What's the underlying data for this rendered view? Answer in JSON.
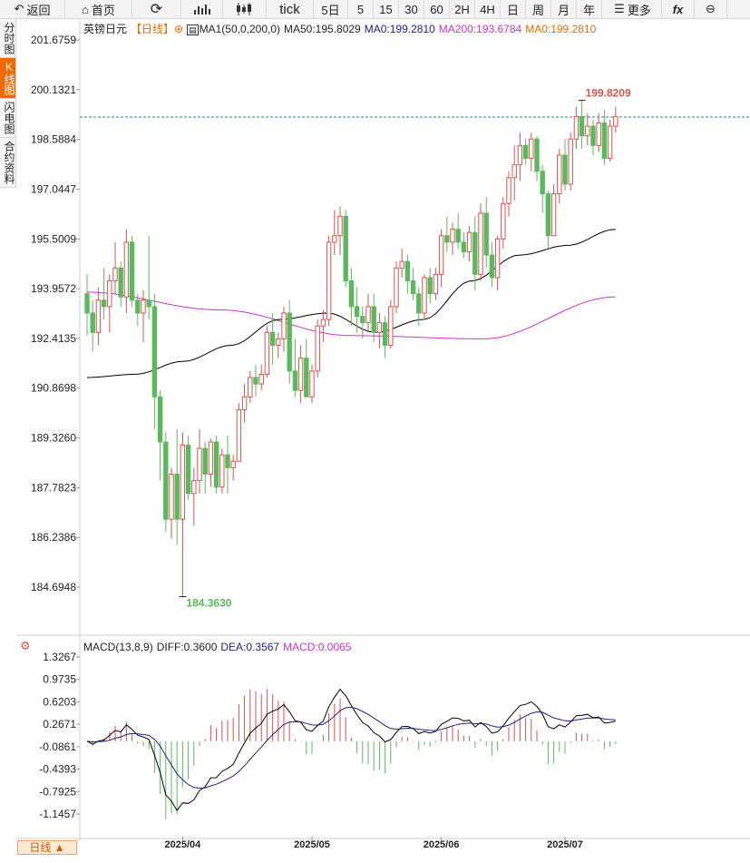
{
  "toolbar": {
    "back_label": "返回",
    "home_label": "首页",
    "tick_label": "tick",
    "periods": [
      "5日",
      "5",
      "15",
      "30",
      "60",
      "2H",
      "4H",
      "日",
      "周",
      "月",
      "年"
    ],
    "more_label": "更多",
    "fx_label": "fx"
  },
  "sidebar": [
    {
      "label": "分时图",
      "active": false
    },
    {
      "label": "K线图",
      "active": true
    },
    {
      "label": "闪电图",
      "active": false
    },
    {
      "label": "合约资料",
      "active": false
    }
  ],
  "info": {
    "symbol": "英镑日元",
    "period_tag": "【日线】",
    "ma_set": "MA1(50,0,200,0)",
    "ma50": "MA50:195.8029",
    "ma0a": "MA0:199.2810",
    "ma200": "MA200:193.6784",
    "ma0b": "MA0:199.2810"
  },
  "macd_info": {
    "name": "MACD(13,8,9)",
    "diff": "DIFF:0.3600",
    "dea": "DEA:0.3567",
    "macd": "MACD:0.0065"
  },
  "colors": {
    "up": "#d9534f",
    "down": "#5cb85c",
    "ma50": "#000000",
    "ma200": "#cc33cc",
    "dea": "#1a237e",
    "accent": "#ee6a00"
  },
  "chart_data": {
    "type": "candlestick",
    "price_axis_ticks": [
      "201.6759",
      "200.1321",
      "198.5884",
      "197.0447",
      "195.5009",
      "193.9572",
      "192.4135",
      "190.8698",
      "189.3260",
      "187.7823",
      "186.2386",
      "184.6948"
    ],
    "price_range": [
      183.9,
      202.2
    ],
    "high_label": "199.8209",
    "low_label": "184.3630",
    "current_price": 199.281,
    "x_labels": [
      {
        "label": "2025/04",
        "index": 17
      },
      {
        "label": "2025/05",
        "index": 40
      },
      {
        "label": "2025/06",
        "index": 63
      },
      {
        "label": "2025/07",
        "index": 85
      }
    ],
    "candles": [
      [
        193.8,
        194.4,
        192.5,
        193.2
      ],
      [
        193.2,
        193.6,
        192.0,
        192.6
      ],
      [
        192.6,
        194.0,
        192.2,
        193.6
      ],
      [
        193.6,
        194.6,
        193.0,
        193.4
      ],
      [
        193.4,
        194.4,
        192.6,
        194.2
      ],
      [
        194.2,
        195.4,
        193.8,
        194.6
      ],
      [
        194.6,
        194.8,
        193.4,
        193.7
      ],
      [
        193.7,
        195.8,
        193.2,
        195.4
      ],
      [
        195.4,
        195.6,
        193.4,
        193.6
      ],
      [
        193.6,
        193.8,
        192.8,
        193.2
      ],
      [
        193.2,
        193.9,
        192.3,
        193.6
      ],
      [
        193.6,
        195.6,
        193.0,
        193.4
      ],
      [
        193.4,
        193.8,
        189.6,
        190.6
      ],
      [
        190.6,
        190.8,
        188.0,
        189.2
      ],
      [
        189.2,
        189.5,
        186.4,
        186.8
      ],
      [
        186.8,
        188.4,
        186.2,
        188.2
      ],
      [
        188.2,
        189.6,
        186.0,
        186.8
      ],
      [
        186.8,
        189.5,
        184.4,
        189.1
      ],
      [
        189.1,
        189.4,
        187.4,
        187.6
      ],
      [
        187.6,
        188.4,
        186.6,
        188.0
      ],
      [
        188.0,
        189.6,
        187.6,
        189.0
      ],
      [
        189.0,
        189.2,
        187.6,
        188.2
      ],
      [
        188.2,
        189.3,
        187.8,
        189.2
      ],
      [
        189.2,
        189.4,
        187.6,
        187.8
      ],
      [
        187.8,
        189.0,
        187.6,
        188.8
      ],
      [
        188.8,
        189.4,
        187.6,
        188.4
      ],
      [
        188.4,
        188.8,
        188.0,
        188.6
      ],
      [
        188.6,
        190.4,
        188.6,
        190.2
      ],
      [
        190.2,
        191.0,
        189.8,
        190.6
      ],
      [
        190.6,
        191.4,
        190.4,
        191.2
      ],
      [
        191.2,
        191.6,
        190.6,
        191.0
      ],
      [
        191.0,
        191.6,
        190.8,
        191.3
      ],
      [
        191.3,
        192.8,
        191.2,
        192.6
      ],
      [
        192.6,
        193.2,
        191.6,
        192.2
      ],
      [
        192.2,
        192.6,
        191.8,
        192.4
      ],
      [
        192.4,
        193.4,
        192.0,
        193.2
      ],
      [
        193.2,
        193.6,
        191.0,
        191.4
      ],
      [
        191.4,
        192.4,
        190.6,
        190.8
      ],
      [
        190.8,
        192.2,
        190.4,
        191.8
      ],
      [
        191.8,
        192.4,
        190.6,
        190.6
      ],
      [
        190.6,
        191.6,
        190.4,
        191.4
      ],
      [
        191.4,
        193.0,
        191.2,
        192.8
      ],
      [
        192.8,
        193.3,
        192.3,
        193.0
      ],
      [
        193.0,
        195.6,
        192.8,
        195.4
      ],
      [
        195.4,
        196.4,
        195.0,
        195.6
      ],
      [
        195.6,
        196.5,
        195.0,
        196.2
      ],
      [
        196.2,
        196.4,
        194.0,
        194.2
      ],
      [
        194.2,
        194.6,
        192.8,
        193.4
      ],
      [
        193.4,
        194.0,
        192.6,
        193.1
      ],
      [
        193.1,
        193.4,
        192.4,
        192.9
      ],
      [
        192.9,
        193.8,
        192.6,
        193.4
      ],
      [
        193.4,
        193.8,
        192.3,
        192.6
      ],
      [
        192.6,
        193.2,
        192.1,
        192.9
      ],
      [
        192.9,
        193.1,
        191.8,
        192.2
      ],
      [
        192.2,
        193.6,
        192.1,
        193.4
      ],
      [
        193.4,
        194.8,
        193.2,
        194.6
      ],
      [
        194.6,
        195.2,
        194.3,
        194.8
      ],
      [
        194.8,
        195.0,
        193.8,
        194.2
      ],
      [
        194.2,
        194.6,
        193.6,
        193.8
      ],
      [
        193.8,
        194.0,
        192.8,
        193.2
      ],
      [
        193.2,
        194.4,
        193.0,
        194.3
      ],
      [
        194.3,
        194.6,
        193.5,
        193.8
      ],
      [
        193.8,
        194.6,
        193.6,
        194.4
      ],
      [
        194.4,
        195.8,
        194.0,
        195.6
      ],
      [
        195.6,
        196.2,
        195.1,
        195.4
      ],
      [
        195.4,
        196.0,
        195.0,
        195.8
      ],
      [
        195.8,
        196.3,
        195.2,
        195.4
      ],
      [
        195.4,
        195.7,
        194.9,
        195.1
      ],
      [
        195.1,
        195.9,
        194.8,
        195.7
      ],
      [
        195.7,
        196.2,
        193.9,
        194.4
      ],
      [
        194.4,
        196.6,
        194.2,
        196.3
      ],
      [
        196.3,
        196.8,
        194.6,
        195.0
      ],
      [
        195.0,
        195.4,
        194.0,
        194.3
      ],
      [
        194.3,
        195.6,
        193.9,
        195.5
      ],
      [
        195.5,
        196.8,
        195.2,
        196.6
      ],
      [
        196.6,
        197.6,
        196.2,
        197.4
      ],
      [
        197.4,
        198.4,
        196.7,
        197.8
      ],
      [
        197.8,
        198.8,
        197.3,
        198.4
      ],
      [
        198.4,
        198.6,
        197.8,
        198.0
      ],
      [
        198.0,
        198.8,
        197.6,
        198.6
      ],
      [
        198.6,
        198.7,
        197.3,
        197.6
      ],
      [
        197.6,
        197.8,
        196.3,
        196.9
      ],
      [
        196.9,
        197.0,
        195.2,
        195.6
      ],
      [
        195.6,
        197.2,
        195.6,
        196.9
      ],
      [
        196.9,
        198.3,
        196.6,
        198.1
      ],
      [
        198.1,
        198.6,
        197.0,
        197.2
      ],
      [
        197.2,
        198.8,
        197.0,
        198.6
      ],
      [
        198.6,
        199.6,
        198.3,
        199.3
      ],
      [
        199.3,
        199.8,
        198.3,
        198.7
      ],
      [
        198.7,
        199.4,
        198.4,
        199.0
      ],
      [
        199.0,
        199.2,
        198.1,
        198.4
      ],
      [
        198.4,
        199.4,
        198.2,
        199.1
      ],
      [
        199.1,
        199.5,
        197.8,
        198.0
      ],
      [
        198.0,
        199.2,
        197.9,
        199.0
      ],
      [
        199.0,
        199.6,
        198.8,
        199.3
      ]
    ],
    "ma50": [
      191.2,
      191.3,
      191.7,
      192.2,
      193.0,
      193.2,
      192.6,
      193.0,
      194.2,
      195.0,
      195.3,
      195.8
    ],
    "ma200": [
      193.85,
      193.3,
      192.5,
      192.4,
      193.7
    ],
    "macd_axis_ticks": [
      "1.3267",
      "0.9735",
      "0.6203",
      "0.2671",
      "-0.0861",
      "-0.4393",
      "-0.7925",
      "-1.1457"
    ],
    "macd_range": [
      -1.35,
      1.45
    ]
  }
}
